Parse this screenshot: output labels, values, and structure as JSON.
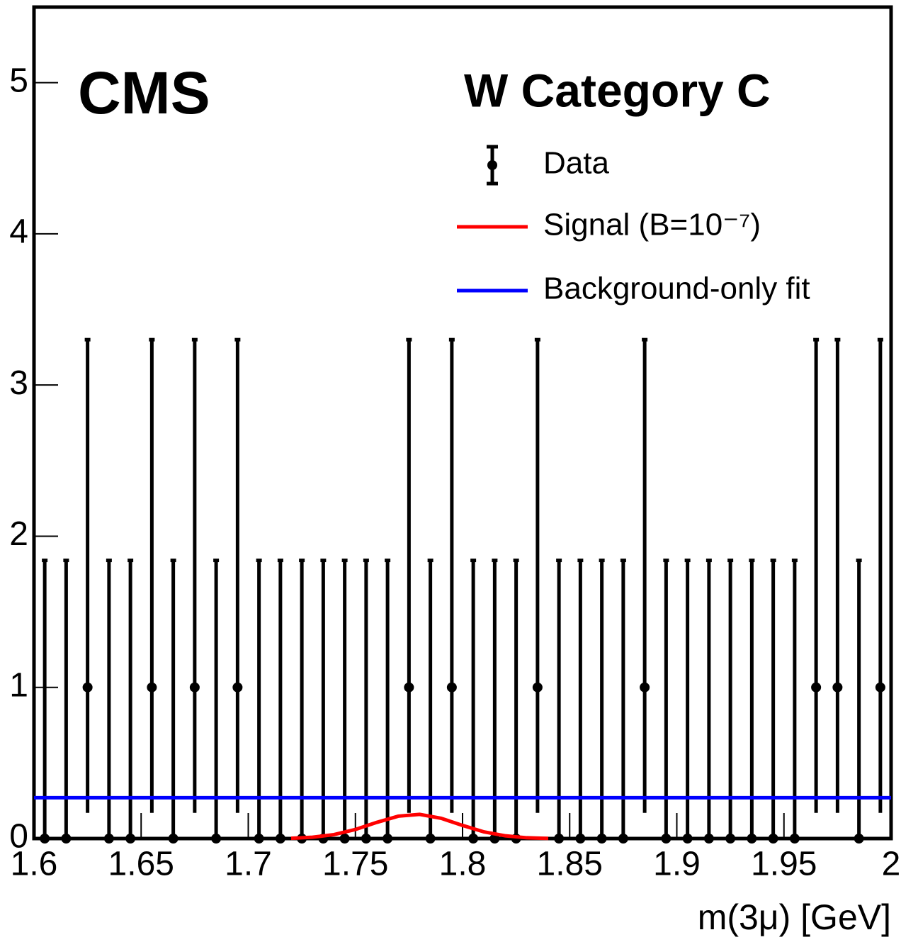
{
  "chart_data": {
    "type": "errorbar",
    "title": "CMS",
    "subtitle": "W Category C",
    "xlabel": "m(3μ) [GeV]",
    "xlim": [
      1.6,
      2.0
    ],
    "xticks": [
      1.6,
      1.65,
      1.7,
      1.75,
      1.8,
      1.85,
      1.9,
      1.95,
      2
    ],
    "ylim": [
      0,
      5.5
    ],
    "yticks": [
      0,
      1,
      2,
      3,
      4,
      5
    ],
    "series": [
      {
        "name": "Data",
        "kind": "points",
        "color": "#000000",
        "x": [
          1.605,
          1.615,
          1.625,
          1.635,
          1.645,
          1.655,
          1.665,
          1.675,
          1.685,
          1.695,
          1.705,
          1.715,
          1.725,
          1.735,
          1.745,
          1.755,
          1.765,
          1.775,
          1.785,
          1.795,
          1.805,
          1.815,
          1.825,
          1.835,
          1.845,
          1.855,
          1.865,
          1.875,
          1.885,
          1.895,
          1.905,
          1.915,
          1.925,
          1.935,
          1.945,
          1.955,
          1.965,
          1.975,
          1.985,
          1.995
        ],
        "values": [
          0,
          0,
          1,
          0,
          0,
          1,
          0,
          1,
          0,
          1,
          0,
          0,
          0,
          0,
          0,
          0,
          0,
          1,
          0,
          1,
          0,
          0,
          0,
          1,
          0,
          0,
          0,
          0,
          1,
          0,
          0,
          0,
          0,
          0,
          0,
          0,
          1,
          1,
          0,
          1
        ],
        "err_low": [
          0,
          0,
          0.83,
          0,
          0,
          0.83,
          0,
          0.83,
          0,
          0.83,
          0,
          0,
          0,
          0,
          0,
          0,
          0,
          0.83,
          0,
          0.83,
          0,
          0,
          0,
          0.83,
          0,
          0,
          0,
          0,
          0.83,
          0,
          0,
          0,
          0,
          0,
          0,
          0,
          0.83,
          0.83,
          0,
          0.83
        ],
        "err_high": [
          1.84,
          1.84,
          2.3,
          1.84,
          1.84,
          2.3,
          1.84,
          2.3,
          1.84,
          2.3,
          1.84,
          1.84,
          1.84,
          1.84,
          1.84,
          1.84,
          1.84,
          2.3,
          1.84,
          2.3,
          1.84,
          1.84,
          1.84,
          2.3,
          1.84,
          1.84,
          1.84,
          1.84,
          2.3,
          1.84,
          1.84,
          1.84,
          1.84,
          1.84,
          1.84,
          1.84,
          2.3,
          2.3,
          1.84,
          2.3
        ]
      },
      {
        "name": "Signal (B=10⁻⁷)",
        "kind": "line",
        "color": "#ff0000",
        "x": [
          1.72,
          1.73,
          1.74,
          1.75,
          1.76,
          1.77,
          1.78,
          1.79,
          1.8,
          1.81,
          1.82,
          1.83,
          1.84
        ],
        "values": [
          0.002,
          0.009,
          0.026,
          0.06,
          0.107,
          0.148,
          0.16,
          0.134,
          0.087,
          0.044,
          0.018,
          0.005,
          0.001
        ]
      },
      {
        "name": "Background-only fit",
        "kind": "line",
        "color": "#0000ff",
        "x": [
          1.6,
          2.0
        ],
        "values": [
          0.27,
          0.27
        ]
      }
    ]
  }
}
